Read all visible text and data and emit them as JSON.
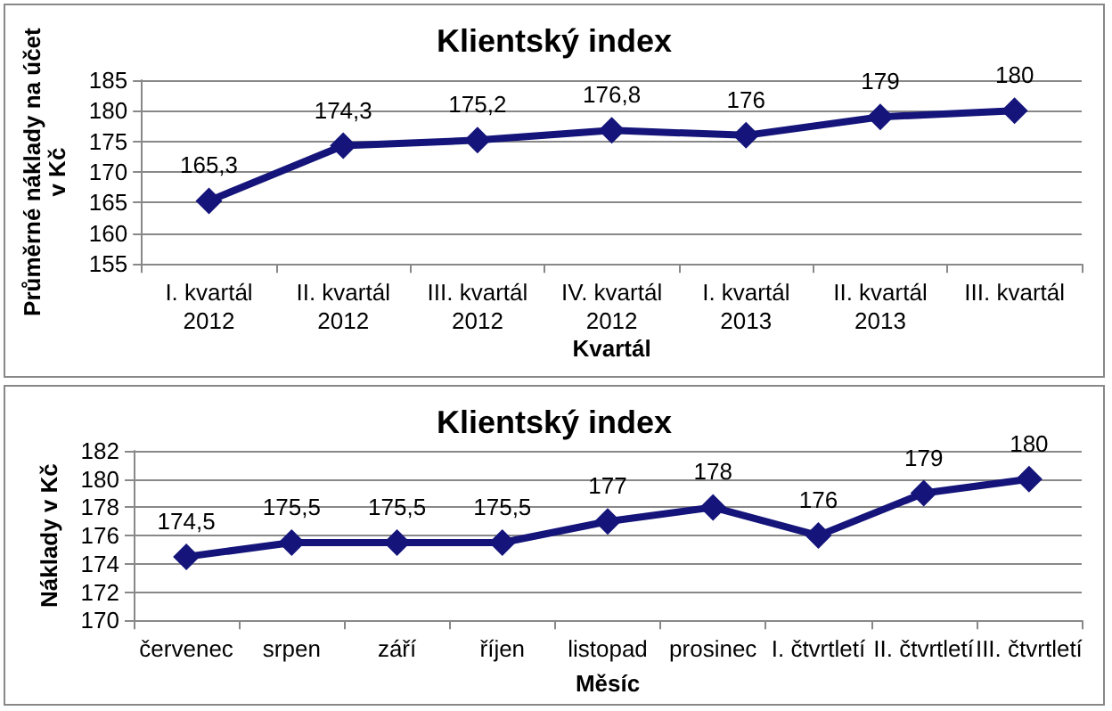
{
  "chart_data": [
    {
      "type": "line",
      "title": "Klientský index",
      "xlabel": "Kvartál",
      "ylabel": "Průměrné náklady na účet v Kč",
      "categories": [
        "I. kvartál\n2012",
        "II. kvartál\n2012",
        "III. kvartál\n2012",
        "IV. kvartál\n2012",
        "I. kvartál\n2013",
        "II. kvartál\n2013",
        "III. kvartál"
      ],
      "series": [
        {
          "color": "#14147a",
          "values": [
            165.3,
            174.3,
            175.2,
            176.8,
            176,
            179,
            180
          ],
          "value_labels": [
            "165,3",
            "174,3",
            "175,2",
            "176,8",
            "176",
            "179",
            "180"
          ]
        }
      ],
      "ylim": [
        155,
        185
      ],
      "yticks": [
        155,
        160,
        165,
        170,
        175,
        180,
        185
      ],
      "grid": "y",
      "marker": "diamond",
      "line_style": "solid"
    },
    {
      "type": "line",
      "title": "Klientský index",
      "xlabel": "Měsíc",
      "ylabel": "Náklady v Kč",
      "categories": [
        "červenec",
        "srpen",
        "září",
        "říjen",
        "listopad",
        "prosinec",
        "I. čtvrtletí",
        "II. čtvrtletí",
        "III. čtvrtletí"
      ],
      "series": [
        {
          "color": "#14147a",
          "values": [
            174.5,
            175.5,
            175.5,
            175.5,
            177,
            178,
            176,
            179,
            180
          ],
          "value_labels": [
            "174,5",
            "175,5",
            "175,5",
            "175,5",
            "177",
            "178",
            "176",
            "179",
            "180"
          ]
        }
      ],
      "ylim": [
        170,
        182
      ],
      "yticks": [
        170,
        172,
        174,
        176,
        178,
        180,
        182
      ],
      "grid": "y",
      "marker": "diamond",
      "line_style": "solid"
    }
  ]
}
